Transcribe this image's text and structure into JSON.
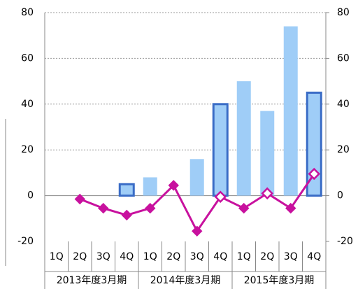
{
  "chart_data": {
    "type": "bar",
    "categories": [
      "1Q",
      "2Q",
      "3Q",
      "4Q",
      "1Q",
      "2Q",
      "3Q",
      "4Q",
      "1Q",
      "2Q",
      "3Q",
      "4Q"
    ],
    "group_labels": [
      "2013年度3月期",
      "2014年度3月期",
      "2015年度3月期"
    ],
    "series": [
      {
        "type": "bar",
        "color": "#9fcdf7",
        "border_color": "#3a6cc6",
        "bordered_indices": [
          3,
          7,
          11
        ],
        "values": [
          null,
          null,
          null,
          5,
          8,
          null,
          16,
          40,
          50,
          37,
          74,
          45
        ]
      },
      {
        "type": "line",
        "axis": "y2",
        "color": "#c8119e",
        "hollow_indices": [
          7,
          9,
          11
        ],
        "values": [
          null,
          -1.5,
          -5.5,
          -8.5,
          -5.5,
          4.5,
          -15.5,
          -0.5,
          -5.5,
          1,
          -5.5,
          9.5
        ]
      }
    ],
    "ylim": [
      -20,
      80
    ],
    "yticks": [
      -20,
      0,
      20,
      40,
      60,
      80
    ],
    "y2lim": [
      -20,
      80
    ],
    "y2ticks": [
      -20,
      0,
      20,
      40,
      60,
      80
    ],
    "grid": true
  }
}
